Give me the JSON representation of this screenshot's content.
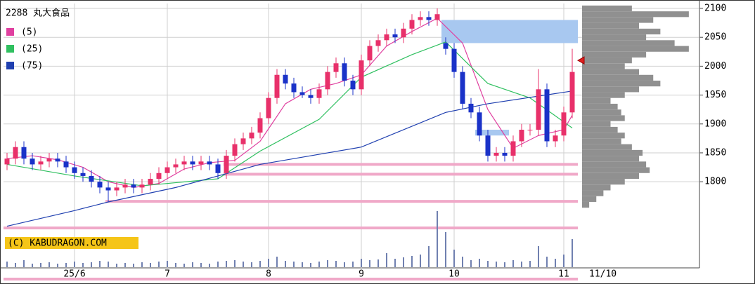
{
  "chart_data": {
    "type": "candlestick",
    "title": "2288 丸大食品",
    "copyright": "(C) KABUDRAGON.COM",
    "date_label": "11/10",
    "categories": [
      null,
      null,
      null,
      null,
      null,
      null,
      null,
      null,
      "25/6",
      null,
      null,
      null,
      null,
      null,
      null,
      null,
      null,
      null,
      null,
      "7",
      null,
      null,
      null,
      null,
      null,
      null,
      null,
      null,
      null,
      null,
      null,
      "8",
      null,
      null,
      null,
      null,
      null,
      null,
      null,
      null,
      null,
      null,
      "9",
      null,
      null,
      null,
      null,
      null,
      null,
      null,
      null,
      null,
      null,
      "10",
      null,
      null,
      null,
      null,
      null,
      null,
      null,
      null,
      null,
      null,
      null,
      null,
      "11",
      null
    ],
    "open": [
      1830,
      1840,
      1860,
      1840,
      1830,
      1835,
      1840,
      1835,
      1825,
      1815,
      1810,
      1800,
      1790,
      1785,
      1790,
      1795,
      1790,
      1795,
      1805,
      1815,
      1825,
      1830,
      1835,
      1830,
      1835,
      1830,
      1815,
      1845,
      1865,
      1875,
      1885,
      1910,
      1945,
      1985,
      1970,
      1955,
      1950,
      1945,
      1960,
      1990,
      2005,
      1975,
      1960,
      2010,
      2035,
      2045,
      2055,
      2050,
      2065,
      2080,
      2085,
      2080,
      2040,
      2030,
      1990,
      1935,
      1920,
      1880,
      1845,
      1850,
      1845,
      1870,
      1890,
      1890,
      1960,
      1870,
      1880,
      1920
    ],
    "high": [
      1850,
      1870,
      1870,
      1850,
      1845,
      1850,
      1850,
      1845,
      1835,
      1825,
      1820,
      1810,
      1800,
      1800,
      1805,
      1805,
      1805,
      1815,
      1825,
      1835,
      1840,
      1845,
      1845,
      1845,
      1845,
      1840,
      1855,
      1875,
      1885,
      1895,
      1920,
      1955,
      1995,
      1995,
      1980,
      1965,
      1960,
      1970,
      2000,
      2015,
      2015,
      1985,
      2020,
      2045,
      2055,
      2065,
      2065,
      2075,
      2090,
      2095,
      2095,
      2100,
      2050,
      2040,
      2000,
      1945,
      1930,
      1890,
      1860,
      1860,
      1880,
      1900,
      1900,
      1995,
      1970,
      1890,
      1930,
      2030
    ],
    "low": [
      1820,
      1830,
      1830,
      1820,
      1820,
      1825,
      1825,
      1815,
      1805,
      1800,
      1790,
      1780,
      1765,
      1775,
      1780,
      1780,
      1780,
      1785,
      1795,
      1805,
      1815,
      1820,
      1820,
      1820,
      1820,
      1805,
      1805,
      1835,
      1855,
      1865,
      1875,
      1900,
      1935,
      1960,
      1945,
      1945,
      1935,
      1935,
      1950,
      1980,
      1965,
      1950,
      1950,
      2000,
      2025,
      2035,
      2040,
      2040,
      2055,
      2070,
      2070,
      2070,
      2020,
      1980,
      1925,
      1910,
      1870,
      1835,
      1835,
      1835,
      1835,
      1860,
      1880,
      1880,
      1860,
      1860,
      1870,
      1910
    ],
    "close": [
      1840,
      1860,
      1840,
      1830,
      1835,
      1840,
      1835,
      1825,
      1815,
      1810,
      1800,
      1790,
      1785,
      1790,
      1795,
      1790,
      1795,
      1805,
      1815,
      1825,
      1830,
      1835,
      1830,
      1835,
      1830,
      1815,
      1845,
      1865,
      1875,
      1885,
      1910,
      1945,
      1985,
      1970,
      1955,
      1950,
      1945,
      1960,
      1990,
      2005,
      1975,
      1960,
      2010,
      2035,
      2045,
      2055,
      2050,
      2065,
      2080,
      2085,
      2080,
      2090,
      2030,
      1990,
      1935,
      1920,
      1880,
      1845,
      1850,
      1845,
      1870,
      1890,
      1890,
      1960,
      1870,
      1880,
      1920,
      1990
    ],
    "up_color": "#e8306a",
    "down_color": "#1a32c8",
    "ylim": [
      1714,
      2108.5
    ],
    "yticks": [
      1800,
      1850,
      1900,
      1950,
      2000,
      2050,
      2100
    ],
    "grid": true,
    "moving_averages": [
      {
        "name": "(5)",
        "color": "#e040a0",
        "x": [
          0,
          3,
          6,
          9,
          12,
          15,
          18,
          21,
          24,
          27,
          30,
          33,
          36,
          39,
          42,
          45,
          48,
          51,
          54,
          57,
          60,
          63,
          66,
          67
        ],
        "values": [
          1840,
          1845,
          1838,
          1825,
          1800,
          1790,
          1797,
          1822,
          1833,
          1837,
          1870,
          1935,
          1960,
          1970,
          1985,
          2035,
          2060,
          2083,
          2040,
          1925,
          1858,
          1880,
          1890,
          1915
        ]
      },
      {
        "name": "(25)",
        "color": "#30c060",
        "x": [
          0,
          8,
          16,
          25,
          30,
          37,
          42,
          48,
          52,
          57,
          62,
          65,
          67
        ],
        "values": [
          1830,
          1810,
          1793,
          1805,
          1853,
          1908,
          1981,
          2020,
          2042,
          1970,
          1945,
          1914,
          1893
        ]
      },
      {
        "name": "(75)",
        "color": "#2040b0",
        "x": [
          0,
          8,
          12,
          20,
          30,
          42,
          52,
          57,
          67
        ],
        "values": [
          1723,
          1750,
          1765,
          1790,
          1830,
          1860,
          1920,
          1935,
          1957
        ]
      }
    ],
    "volume": {
      "color": "#7080b0",
      "ylim": [
        0,
        80
      ],
      "values": [
        8,
        6,
        10,
        5,
        6,
        7,
        5,
        6,
        8,
        6,
        7,
        9,
        8,
        5,
        6,
        5,
        7,
        6,
        8,
        9,
        6,
        5,
        7,
        6,
        5,
        8,
        9,
        10,
        8,
        7,
        9,
        12,
        15,
        9,
        8,
        7,
        6,
        8,
        10,
        9,
        7,
        8,
        12,
        10,
        11,
        20,
        12,
        14,
        16,
        18,
        30,
        80,
        50,
        25,
        15,
        10,
        12,
        9,
        8,
        7,
        10,
        8,
        9,
        30,
        15,
        12,
        18,
        40
      ]
    },
    "volume_profile": {
      "color": "#909090",
      "xlim": [
        0,
        160
      ],
      "prices": [
        1760,
        1770,
        1780,
        1790,
        1800,
        1810,
        1820,
        1830,
        1840,
        1850,
        1860,
        1870,
        1880,
        1890,
        1900,
        1910,
        1920,
        1930,
        1940,
        1950,
        1960,
        1970,
        1980,
        1990,
        2000,
        2010,
        2020,
        2030,
        2040,
        2050,
        2060,
        2070,
        2080,
        2090,
        2100
      ],
      "values": [
        10,
        20,
        30,
        40,
        60,
        80,
        95,
        90,
        80,
        85,
        70,
        55,
        60,
        50,
        40,
        60,
        55,
        50,
        40,
        60,
        80,
        110,
        100,
        80,
        60,
        70,
        90,
        150,
        130,
        90,
        110,
        80,
        100,
        150,
        70
      ]
    },
    "zones": [
      {
        "from": 2040,
        "to": 2080,
        "start": 52,
        "end": 67,
        "color": "#a8c8f0"
      },
      {
        "from": 1880,
        "to": 1890,
        "start": 56,
        "end": 59,
        "color": "#a8c8f0"
      }
    ],
    "lines": [
      {
        "value": 1830,
        "start": 26,
        "color": "#f0a8c8"
      },
      {
        "value": 1813,
        "start": 26,
        "color": "#f0a8c8"
      },
      {
        "value": 1766,
        "start": 12,
        "color": "#f0a8c8"
      },
      {
        "value": 1720,
        "start": 0,
        "color": "#f0a8c8"
      }
    ],
    "last_marker": 2010
  }
}
